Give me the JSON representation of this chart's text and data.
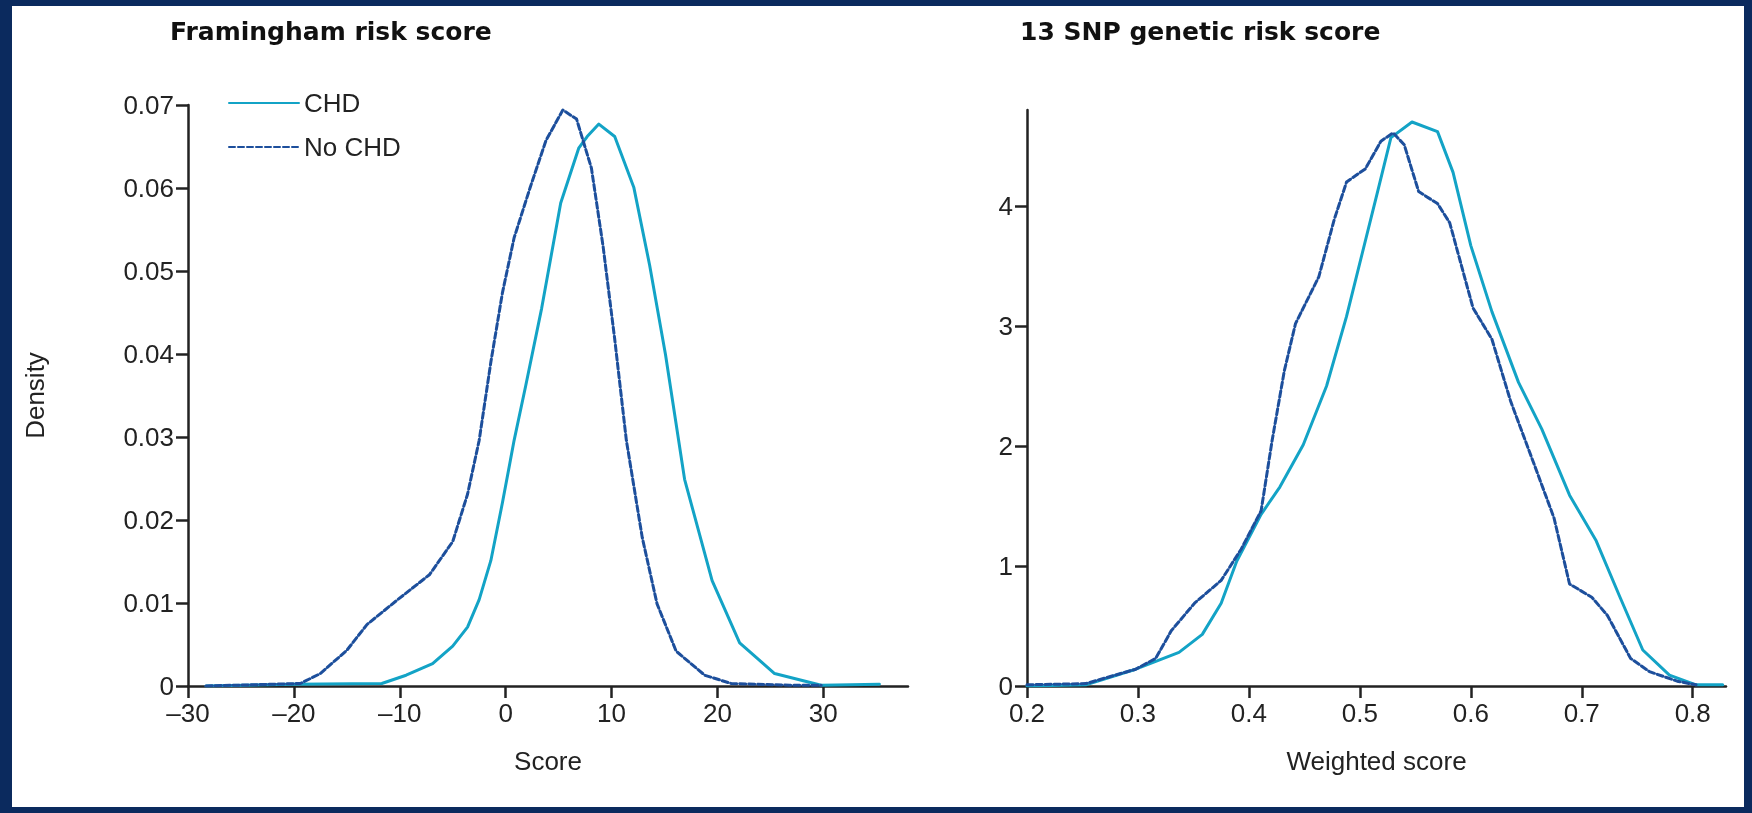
{
  "chart_data": [
    {
      "type": "line",
      "title": "Framingham risk score",
      "xlabel": "Score",
      "ylabel": "Density",
      "legend": "top left",
      "marker": "none",
      "xlim": [
        -30,
        38
      ],
      "xticks": [
        {
          "value": -30,
          "label": "–30"
        },
        {
          "value": -20,
          "label": "–20"
        },
        {
          "value": -10,
          "label": "–10"
        },
        0,
        10,
        20,
        30
      ],
      "ylim": [
        0,
        0.07
      ],
      "yticks": [
        0,
        0.01,
        0.02,
        0.03,
        0.04,
        0.05,
        0.06,
        0.07
      ],
      "series": [
        {
          "name": "CHD",
          "color": "#13a3c6",
          "line_style": "solid",
          "x": [
            -28.3,
            -20.1,
            -11.7,
            -9.4,
            -6.9,
            -5.0,
            -3.6,
            -2.5,
            -1.4,
            -0.3,
            0.8,
            1.9,
            3.4,
            5.2,
            6.9,
            7.7,
            8.8,
            10.3,
            12.1,
            13.6,
            15.1,
            16.9,
            19.5,
            22.1,
            25.4,
            29.8,
            35.3
          ],
          "values": [
            0,
            0.0002,
            0.0003,
            0.0013,
            0.0027,
            0.0048,
            0.0071,
            0.0104,
            0.0151,
            0.0221,
            0.0296,
            0.0362,
            0.0455,
            0.0582,
            0.0648,
            0.0662,
            0.0677,
            0.0662,
            0.0601,
            0.0507,
            0.0399,
            0.0249,
            0.0127,
            0.0052,
            0.0015,
            0.0001,
            0.0002
          ]
        },
        {
          "name": "No CHD",
          "color": "#1d4f9c",
          "line_style": "dashed",
          "x": [
            -28.3,
            -19.4,
            -17.5,
            -15.0,
            -13.1,
            -10.2,
            -7.2,
            -5.0,
            -3.6,
            -2.5,
            -1.4,
            -0.3,
            0.8,
            2.3,
            3.8,
            5.4,
            6.7,
            8.1,
            9.2,
            10.3,
            11.4,
            12.9,
            14.3,
            16.1,
            18.8,
            21.3,
            26.8,
            29.8
          ],
          "values": [
            0,
            0.0003,
            0.0015,
            0.0043,
            0.0074,
            0.0104,
            0.0134,
            0.0174,
            0.0231,
            0.0296,
            0.039,
            0.0474,
            0.054,
            0.06,
            0.0657,
            0.0694,
            0.0683,
            0.0624,
            0.053,
            0.0418,
            0.0296,
            0.0179,
            0.0099,
            0.0042,
            0.0013,
            0.0003,
            0.0001,
            0.0001
          ]
        }
      ]
    },
    {
      "type": "line",
      "title": "13 SNP genetic risk score",
      "xlabel": "Weighted score",
      "marker": "none",
      "xlim": [
        0.2,
        0.83
      ],
      "xticks": [
        0.2,
        0.3,
        0.4,
        0.5,
        0.6,
        0.7,
        0.8
      ],
      "ylim": [
        0,
        4.8
      ],
      "yticks": [
        0,
        1,
        2,
        3,
        4
      ],
      "series": [
        {
          "color": "#13a3c6",
          "line_style": "solid",
          "x": [
            0.2,
            0.253,
            0.298,
            0.337,
            0.358,
            0.375,
            0.389,
            0.411,
            0.428,
            0.449,
            0.47,
            0.488,
            0.502,
            0.516,
            0.528,
            0.547,
            0.57,
            0.584,
            0.6,
            0.619,
            0.643,
            0.664,
            0.689,
            0.713,
            0.734,
            0.755,
            0.779,
            0.803,
            0.827
          ],
          "values": [
            0,
            0.01,
            0.14,
            0.28,
            0.43,
            0.69,
            1.04,
            1.43,
            1.66,
            2.01,
            2.5,
            3.08,
            3.6,
            4.12,
            4.57,
            4.7,
            4.62,
            4.28,
            3.67,
            3.12,
            2.53,
            2.14,
            1.59,
            1.21,
            0.75,
            0.3,
            0.09,
            0.01,
            0.01
          ]
        },
        {
          "color": "#1d4f9c",
          "line_style": "dashed",
          "x": [
            0.2,
            0.253,
            0.298,
            0.316,
            0.33,
            0.351,
            0.375,
            0.393,
            0.411,
            0.421,
            0.432,
            0.442,
            0.463,
            0.477,
            0.488,
            0.505,
            0.519,
            0.53,
            0.54,
            0.553,
            0.57,
            0.581,
            0.602,
            0.619,
            0.636,
            0.657,
            0.675,
            0.689,
            0.709,
            0.723,
            0.744,
            0.761,
            0.786,
            0.803
          ],
          "values": [
            0.01,
            0.02,
            0.14,
            0.23,
            0.46,
            0.69,
            0.88,
            1.14,
            1.46,
            2.05,
            2.63,
            3.02,
            3.41,
            3.89,
            4.2,
            4.31,
            4.54,
            4.61,
            4.51,
            4.12,
            4.02,
            3.86,
            3.15,
            2.89,
            2.37,
            1.85,
            1.4,
            0.85,
            0.74,
            0.59,
            0.23,
            0.12,
            0.04,
            0.01
          ]
        }
      ]
    }
  ]
}
